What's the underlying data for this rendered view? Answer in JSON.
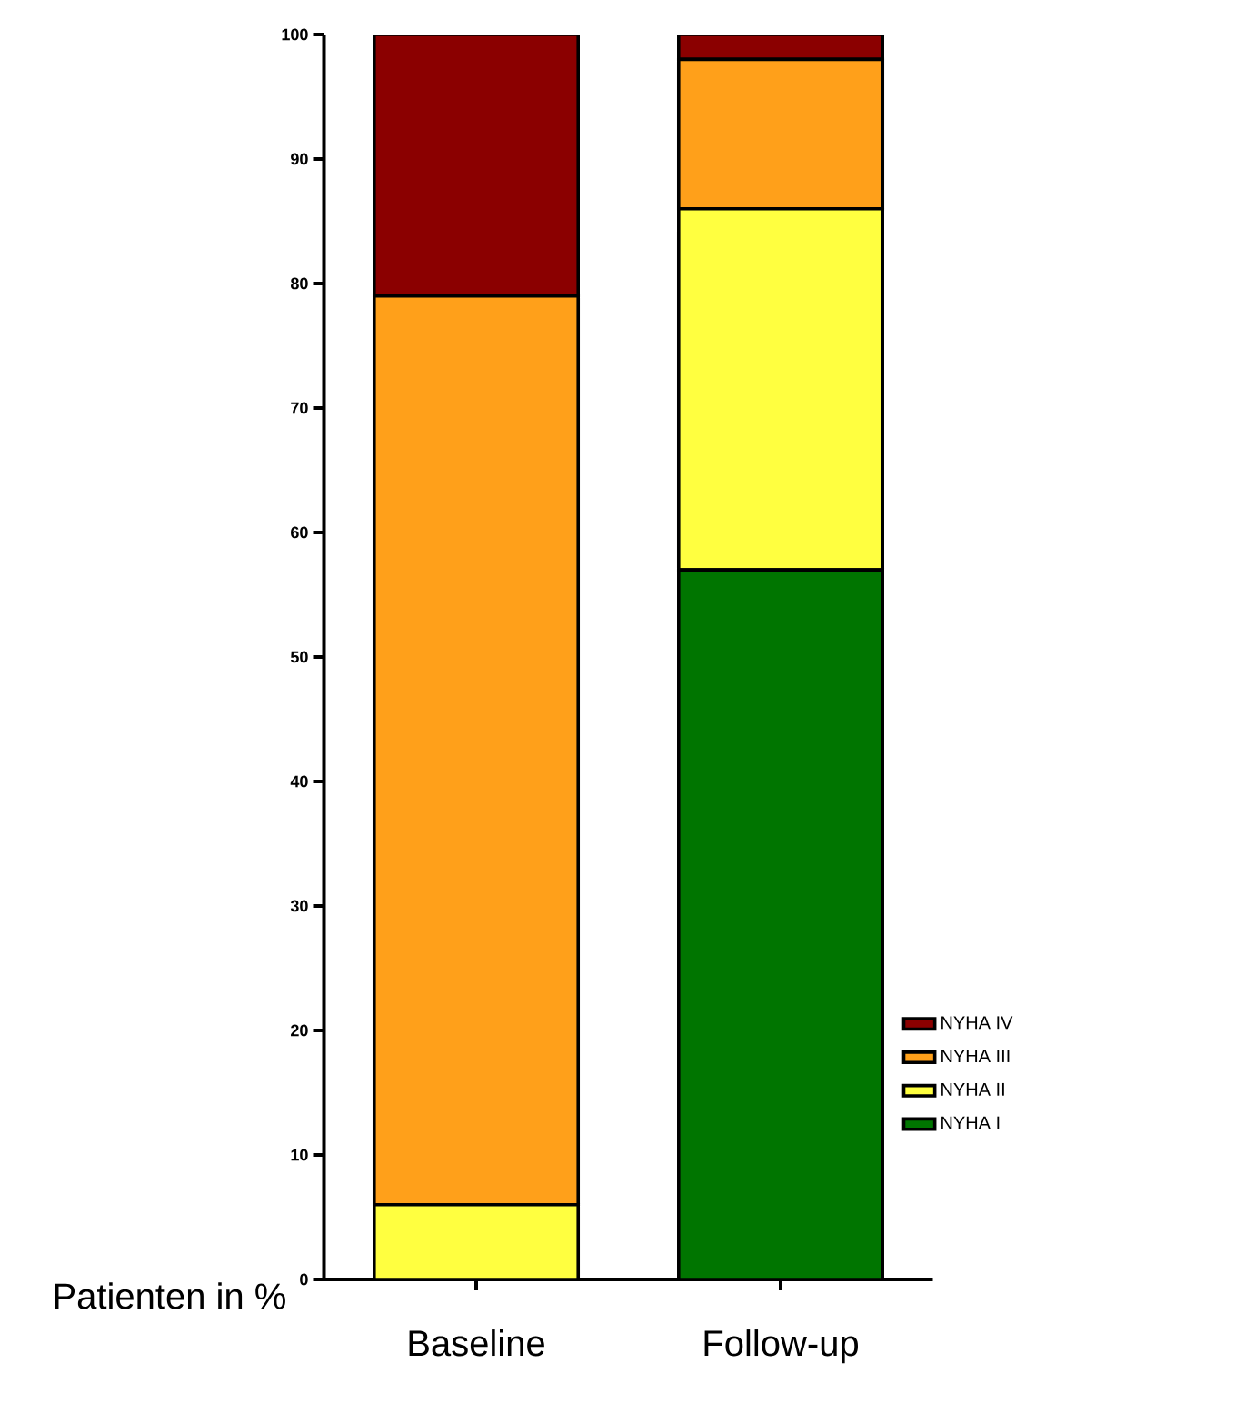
{
  "chart_data": {
    "type": "bar",
    "stacked": true,
    "ylabel": "Patienten in %",
    "categories": [
      "Baseline",
      "Follow-up"
    ],
    "series": [
      {
        "name": "NYHA I",
        "color": "#007500",
        "values": [
          0,
          57
        ]
      },
      {
        "name": "NYHA II",
        "color": "#ffff40",
        "values": [
          6,
          29
        ]
      },
      {
        "name": "NYHA III",
        "color": "#ffa01a",
        "values": [
          73,
          12
        ]
      },
      {
        "name": "NYHA IV",
        "color": "#8b0000",
        "values": [
          21,
          2
        ]
      }
    ],
    "ylim": [
      0,
      100
    ],
    "yticks": [
      0,
      10,
      20,
      30,
      40,
      50,
      60,
      70,
      80,
      90,
      100
    ],
    "grid": false,
    "legend": "right"
  }
}
